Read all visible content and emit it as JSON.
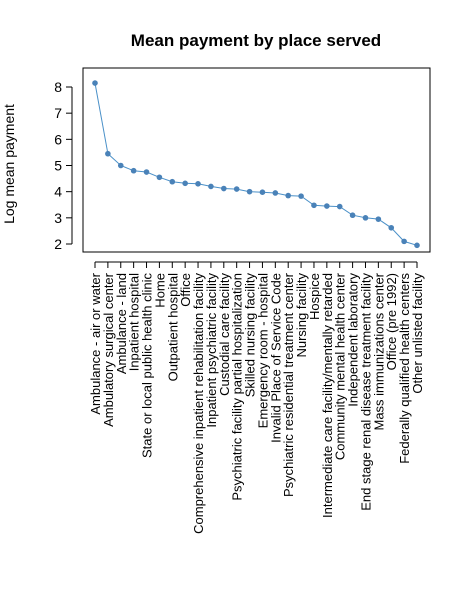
{
  "chart_data": {
    "type": "line",
    "title": "Mean payment by place served",
    "xlabel": "",
    "ylabel": "Log mean payment",
    "ylim": [
      1.75,
      8.5
    ],
    "yticks": [
      2,
      3,
      4,
      5,
      6,
      7,
      8
    ],
    "grid": false,
    "categories": [
      "Ambulance - air or water",
      "Ambulatory surgical center",
      "Ambulance - land",
      "Inpatient hospital",
      "State or local public health clinic",
      "Home",
      "Outpatient hospital",
      "Office",
      "Comprehensive inpatient rehabilitation facility",
      "Inpatient psychiatric facility",
      "Custodial care facility",
      "Psychiatric facility partial hospitalization",
      "Skilled nursing facility",
      "Emergency room - hospital",
      "Invalid Place of Service Code",
      "Psychiatric residential treatment center",
      "Nursing facility",
      "Hospice",
      "Intermediate care facility/mentally retarded",
      "Community mental health center",
      "Independent laboratory",
      "End stage renal disease treatment facility",
      "Mass immunizations center",
      "Office (pre 1992)",
      "Federally qualified health centers",
      "Other unlisted facility"
    ],
    "values": [
      8.15,
      5.45,
      5.0,
      4.8,
      4.75,
      4.55,
      4.38,
      4.32,
      4.3,
      4.2,
      4.12,
      4.1,
      4.0,
      3.98,
      3.95,
      3.85,
      3.83,
      3.48,
      3.45,
      3.43,
      3.1,
      3.0,
      2.95,
      2.62,
      2.1,
      1.95
    ],
    "colors": {
      "line": "#4a90c8",
      "point": "#4a82b8"
    }
  }
}
